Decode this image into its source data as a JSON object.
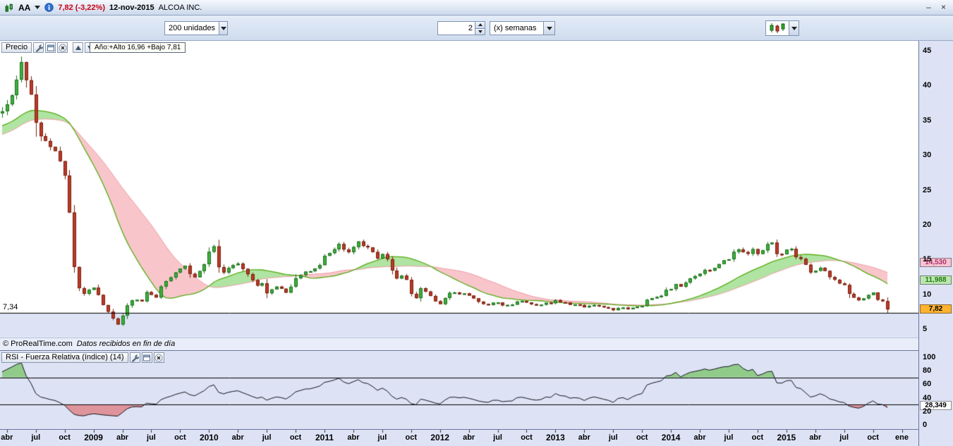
{
  "title_bar": {
    "symbol": "AA",
    "quote": "7,82 (-3,22%)",
    "date": "12-nov-2015",
    "name": "ALCOA INC.",
    "minimize": "–",
    "close": "×"
  },
  "toolbar": {
    "units_select": "200 unidades",
    "interval_value": "2",
    "interval_unit": "(x) semanas"
  },
  "price_panel": {
    "label": "Precio",
    "info_box": "Año:+Alto 16,96 +Bajo 7,81",
    "level_label": "7,34",
    "y_ticks": [
      "45",
      "40",
      "35",
      "30",
      "25",
      "20",
      "15",
      "10",
      "5"
    ],
    "tags": [
      {
        "text": "14,530",
        "value": 14.53,
        "bg": "#f6c3d2",
        "color": "#aa3366"
      },
      {
        "text": "11,988",
        "value": 11.988,
        "bg": "#bde6ae",
        "color": "#1d7a10"
      },
      {
        "text": "7,82",
        "value": 7.82,
        "bg": "#ffb22e",
        "color": "#000000"
      }
    ],
    "copyright": "© ProRealTime.com",
    "copyright_note": "Datos recibidos en fin de día"
  },
  "rsi_panel": {
    "label": "RSI - Fuerza Relativa (índice) (14)",
    "y_ticks": [
      "100",
      "80",
      "60",
      "40",
      "20",
      "0"
    ],
    "value_tag": "28,349"
  },
  "x_axis": {
    "labels": [
      {
        "text": "abr",
        "week": 2
      },
      {
        "text": "jul",
        "week": 14
      },
      {
        "text": "oct",
        "week": 26
      },
      {
        "text": "2009",
        "week": 38,
        "year": true
      },
      {
        "text": "abr",
        "week": 50
      },
      {
        "text": "jul",
        "week": 62
      },
      {
        "text": "oct",
        "week": 74
      },
      {
        "text": "2010",
        "week": 86,
        "year": true
      },
      {
        "text": "abr",
        "week": 98
      },
      {
        "text": "jul",
        "week": 110
      },
      {
        "text": "oct",
        "week": 122
      },
      {
        "text": "2011",
        "week": 134,
        "year": true
      },
      {
        "text": "abr",
        "week": 146
      },
      {
        "text": "jul",
        "week": 158
      },
      {
        "text": "oct",
        "week": 170
      },
      {
        "text": "2012",
        "week": 182,
        "year": true
      },
      {
        "text": "abr",
        "week": 194
      },
      {
        "text": "jul",
        "week": 206
      },
      {
        "text": "oct",
        "week": 218
      },
      {
        "text": "2013",
        "week": 230,
        "year": true
      },
      {
        "text": "abr",
        "week": 242
      },
      {
        "text": "jul",
        "week": 254
      },
      {
        "text": "oct",
        "week": 266
      },
      {
        "text": "2014",
        "week": 278,
        "year": true
      },
      {
        "text": "abr",
        "week": 290
      },
      {
        "text": "jul",
        "week": 302
      },
      {
        "text": "oct",
        "week": 314
      },
      {
        "text": "2015",
        "week": 326,
        "year": true
      },
      {
        "text": "abr",
        "week": 338
      },
      {
        "text": "jul",
        "week": 350
      },
      {
        "text": "oct",
        "week": 362
      },
      {
        "text": "ene",
        "week": 374
      }
    ]
  },
  "chart_data": {
    "type": "candlestick",
    "instrument": "ALCOA INC. (AA)",
    "interval": "2 semanas",
    "units_shown": 200,
    "last_price": 7.82,
    "change_pct": -3.22,
    "date": "12-nov-2015",
    "year_high": 16.96,
    "year_low": 7.81,
    "level_line": 7.34,
    "price_axis": {
      "min": 5,
      "max": 45,
      "ticks": [
        45,
        40,
        35,
        30,
        25,
        20,
        15,
        10,
        5
      ]
    },
    "ma_render": {
      "short_bars": 20,
      "long_bars": 30,
      "short_last": 11.988,
      "long_last": 14.53,
      "up_fill": "rgba(112,205,85,0.55)",
      "down_fill": "rgba(238,112,122,0.40)",
      "short_color": "#55aa12",
      "long_color": "#ef9aa6"
    },
    "rsi": {
      "period": 14,
      "last": 28.349,
      "overbought": 70,
      "oversold": 30
    },
    "colors": {
      "up_body": "#3db03d",
      "up_border": "#1d6f1d",
      "down_body": "#bc3a28",
      "down_border": "#77200f",
      "below_zone": "#dde3f5",
      "level_line": "#000000",
      "rsi_line": "#101018"
    },
    "weekly_close_anchors": [
      [
        -76,
        29
      ],
      [
        -60,
        29
      ],
      [
        -48,
        30.5
      ],
      [
        -36,
        32.5
      ],
      [
        -24,
        34
      ],
      [
        -12,
        35
      ],
      [
        -4,
        35.5
      ],
      [
        0,
        36
      ],
      [
        2,
        37
      ],
      [
        5,
        39
      ],
      [
        8,
        43
      ],
      [
        10,
        40.5
      ],
      [
        12,
        39
      ],
      [
        14,
        35
      ],
      [
        17,
        32
      ],
      [
        20,
        31
      ],
      [
        23,
        30.5
      ],
      [
        26,
        27
      ],
      [
        28,
        22
      ],
      [
        30,
        14
      ],
      [
        32,
        11
      ],
      [
        34,
        10
      ],
      [
        36,
        10.5
      ],
      [
        38,
        11
      ],
      [
        40,
        10
      ],
      [
        42,
        8.5
      ],
      [
        44,
        7.5
      ],
      [
        46,
        6.5
      ],
      [
        48,
        5.7
      ],
      [
        50,
        7
      ],
      [
        52,
        8.5
      ],
      [
        54,
        9
      ],
      [
        56,
        9.3
      ],
      [
        58,
        9
      ],
      [
        60,
        10.3
      ],
      [
        62,
        10
      ],
      [
        64,
        9.5
      ],
      [
        66,
        11
      ],
      [
        68,
        12
      ],
      [
        70,
        12.3
      ],
      [
        72,
        13
      ],
      [
        74,
        13.8
      ],
      [
        76,
        14.2
      ],
      [
        78,
        12.8
      ],
      [
        80,
        12.5
      ],
      [
        82,
        13.2
      ],
      [
        84,
        14.5
      ],
      [
        86,
        16
      ],
      [
        88,
        16.8
      ],
      [
        90,
        13.8
      ],
      [
        92,
        13.2
      ],
      [
        94,
        13.6
      ],
      [
        96,
        14.3
      ],
      [
        98,
        14.4
      ],
      [
        100,
        13.5
      ],
      [
        102,
        12.8
      ],
      [
        104,
        12
      ],
      [
        106,
        11.3
      ],
      [
        108,
        11.5
      ],
      [
        110,
        10.2
      ],
      [
        112,
        10.8
      ],
      [
        114,
        11.2
      ],
      [
        116,
        10.8
      ],
      [
        118,
        10.3
      ],
      [
        120,
        11
      ],
      [
        122,
        12.2
      ],
      [
        124,
        12.8
      ],
      [
        126,
        13.3
      ],
      [
        128,
        13.2
      ],
      [
        130,
        13.6
      ],
      [
        132,
        14.2
      ],
      [
        134,
        15.4
      ],
      [
        136,
        16
      ],
      [
        138,
        16.6
      ],
      [
        140,
        17.2
      ],
      [
        142,
        16.5
      ],
      [
        144,
        16.2
      ],
      [
        146,
        17
      ],
      [
        148,
        17.6
      ],
      [
        150,
        17
      ],
      [
        152,
        16.8
      ],
      [
        154,
        16
      ],
      [
        156,
        15.2
      ],
      [
        158,
        15.8
      ],
      [
        160,
        15.2
      ],
      [
        162,
        13.5
      ],
      [
        164,
        12.3
      ],
      [
        166,
        12.8
      ],
      [
        168,
        12
      ],
      [
        170,
        10
      ],
      [
        172,
        9.5
      ],
      [
        174,
        10.8
      ],
      [
        176,
        10.5
      ],
      [
        178,
        9.8
      ],
      [
        180,
        9
      ],
      [
        182,
        8.7
      ],
      [
        184,
        9.5
      ],
      [
        186,
        10.2
      ],
      [
        188,
        10.3
      ],
      [
        190,
        10
      ],
      [
        192,
        10.1
      ],
      [
        194,
        9.7
      ],
      [
        196,
        9.4
      ],
      [
        198,
        9
      ],
      [
        200,
        8.6
      ],
      [
        202,
        8.4
      ],
      [
        204,
        8.7
      ],
      [
        206,
        8.8
      ],
      [
        208,
        8.3
      ],
      [
        210,
        8.4
      ],
      [
        212,
        8.6
      ],
      [
        214,
        8.9
      ],
      [
        216,
        9.1
      ],
      [
        218,
        8.8
      ],
      [
        220,
        8.5
      ],
      [
        222,
        8.4
      ],
      [
        224,
        8.6
      ],
      [
        226,
        8.7
      ],
      [
        228,
        8.8
      ],
      [
        230,
        9.1
      ],
      [
        232,
        8.9
      ],
      [
        234,
        8.8
      ],
      [
        236,
        8.5
      ],
      [
        238,
        8.5
      ],
      [
        240,
        8.4
      ],
      [
        242,
        8.1
      ],
      [
        244,
        8.4
      ],
      [
        246,
        8.5
      ],
      [
        248,
        8.4
      ],
      [
        250,
        8.1
      ],
      [
        252,
        7.9
      ],
      [
        254,
        7.8
      ],
      [
        256,
        8
      ],
      [
        258,
        8.1
      ],
      [
        260,
        7.9
      ],
      [
        262,
        8.1
      ],
      [
        264,
        8.2
      ],
      [
        266,
        8.3
      ],
      [
        268,
        9.2
      ],
      [
        270,
        9.4
      ],
      [
        272,
        9.5
      ],
      [
        274,
        9.9
      ],
      [
        276,
        10.6
      ],
      [
        278,
        10.8
      ],
      [
        280,
        11.4
      ],
      [
        282,
        11.2
      ],
      [
        284,
        11.8
      ],
      [
        286,
        12.2
      ],
      [
        288,
        12.7
      ],
      [
        290,
        12.9
      ],
      [
        292,
        13.4
      ],
      [
        294,
        13.5
      ],
      [
        296,
        13.8
      ],
      [
        298,
        14.2
      ],
      [
        300,
        14.8
      ],
      [
        302,
        15
      ],
      [
        304,
        16.2
      ],
      [
        306,
        16.6
      ],
      [
        308,
        16.2
      ],
      [
        310,
        16
      ],
      [
        312,
        16.4
      ],
      [
        314,
        15.6
      ],
      [
        316,
        16.2
      ],
      [
        318,
        17
      ],
      [
        320,
        17.2
      ],
      [
        322,
        16
      ],
      [
        324,
        15.8
      ],
      [
        326,
        16.3
      ],
      [
        328,
        16.5
      ],
      [
        330,
        15.2
      ],
      [
        332,
        14.9
      ],
      [
        334,
        14.3
      ],
      [
        336,
        13.1
      ],
      [
        338,
        13.3
      ],
      [
        340,
        13.9
      ],
      [
        342,
        13.5
      ],
      [
        344,
        12.6
      ],
      [
        346,
        12.1
      ],
      [
        348,
        11.6
      ],
      [
        350,
        11.4
      ],
      [
        352,
        10.1
      ],
      [
        354,
        9.6
      ],
      [
        356,
        9.1
      ],
      [
        358,
        9.4
      ],
      [
        360,
        9.8
      ],
      [
        362,
        10.2
      ],
      [
        364,
        9.1
      ],
      [
        366,
        8.9
      ],
      [
        368,
        7.82
      ]
    ]
  }
}
